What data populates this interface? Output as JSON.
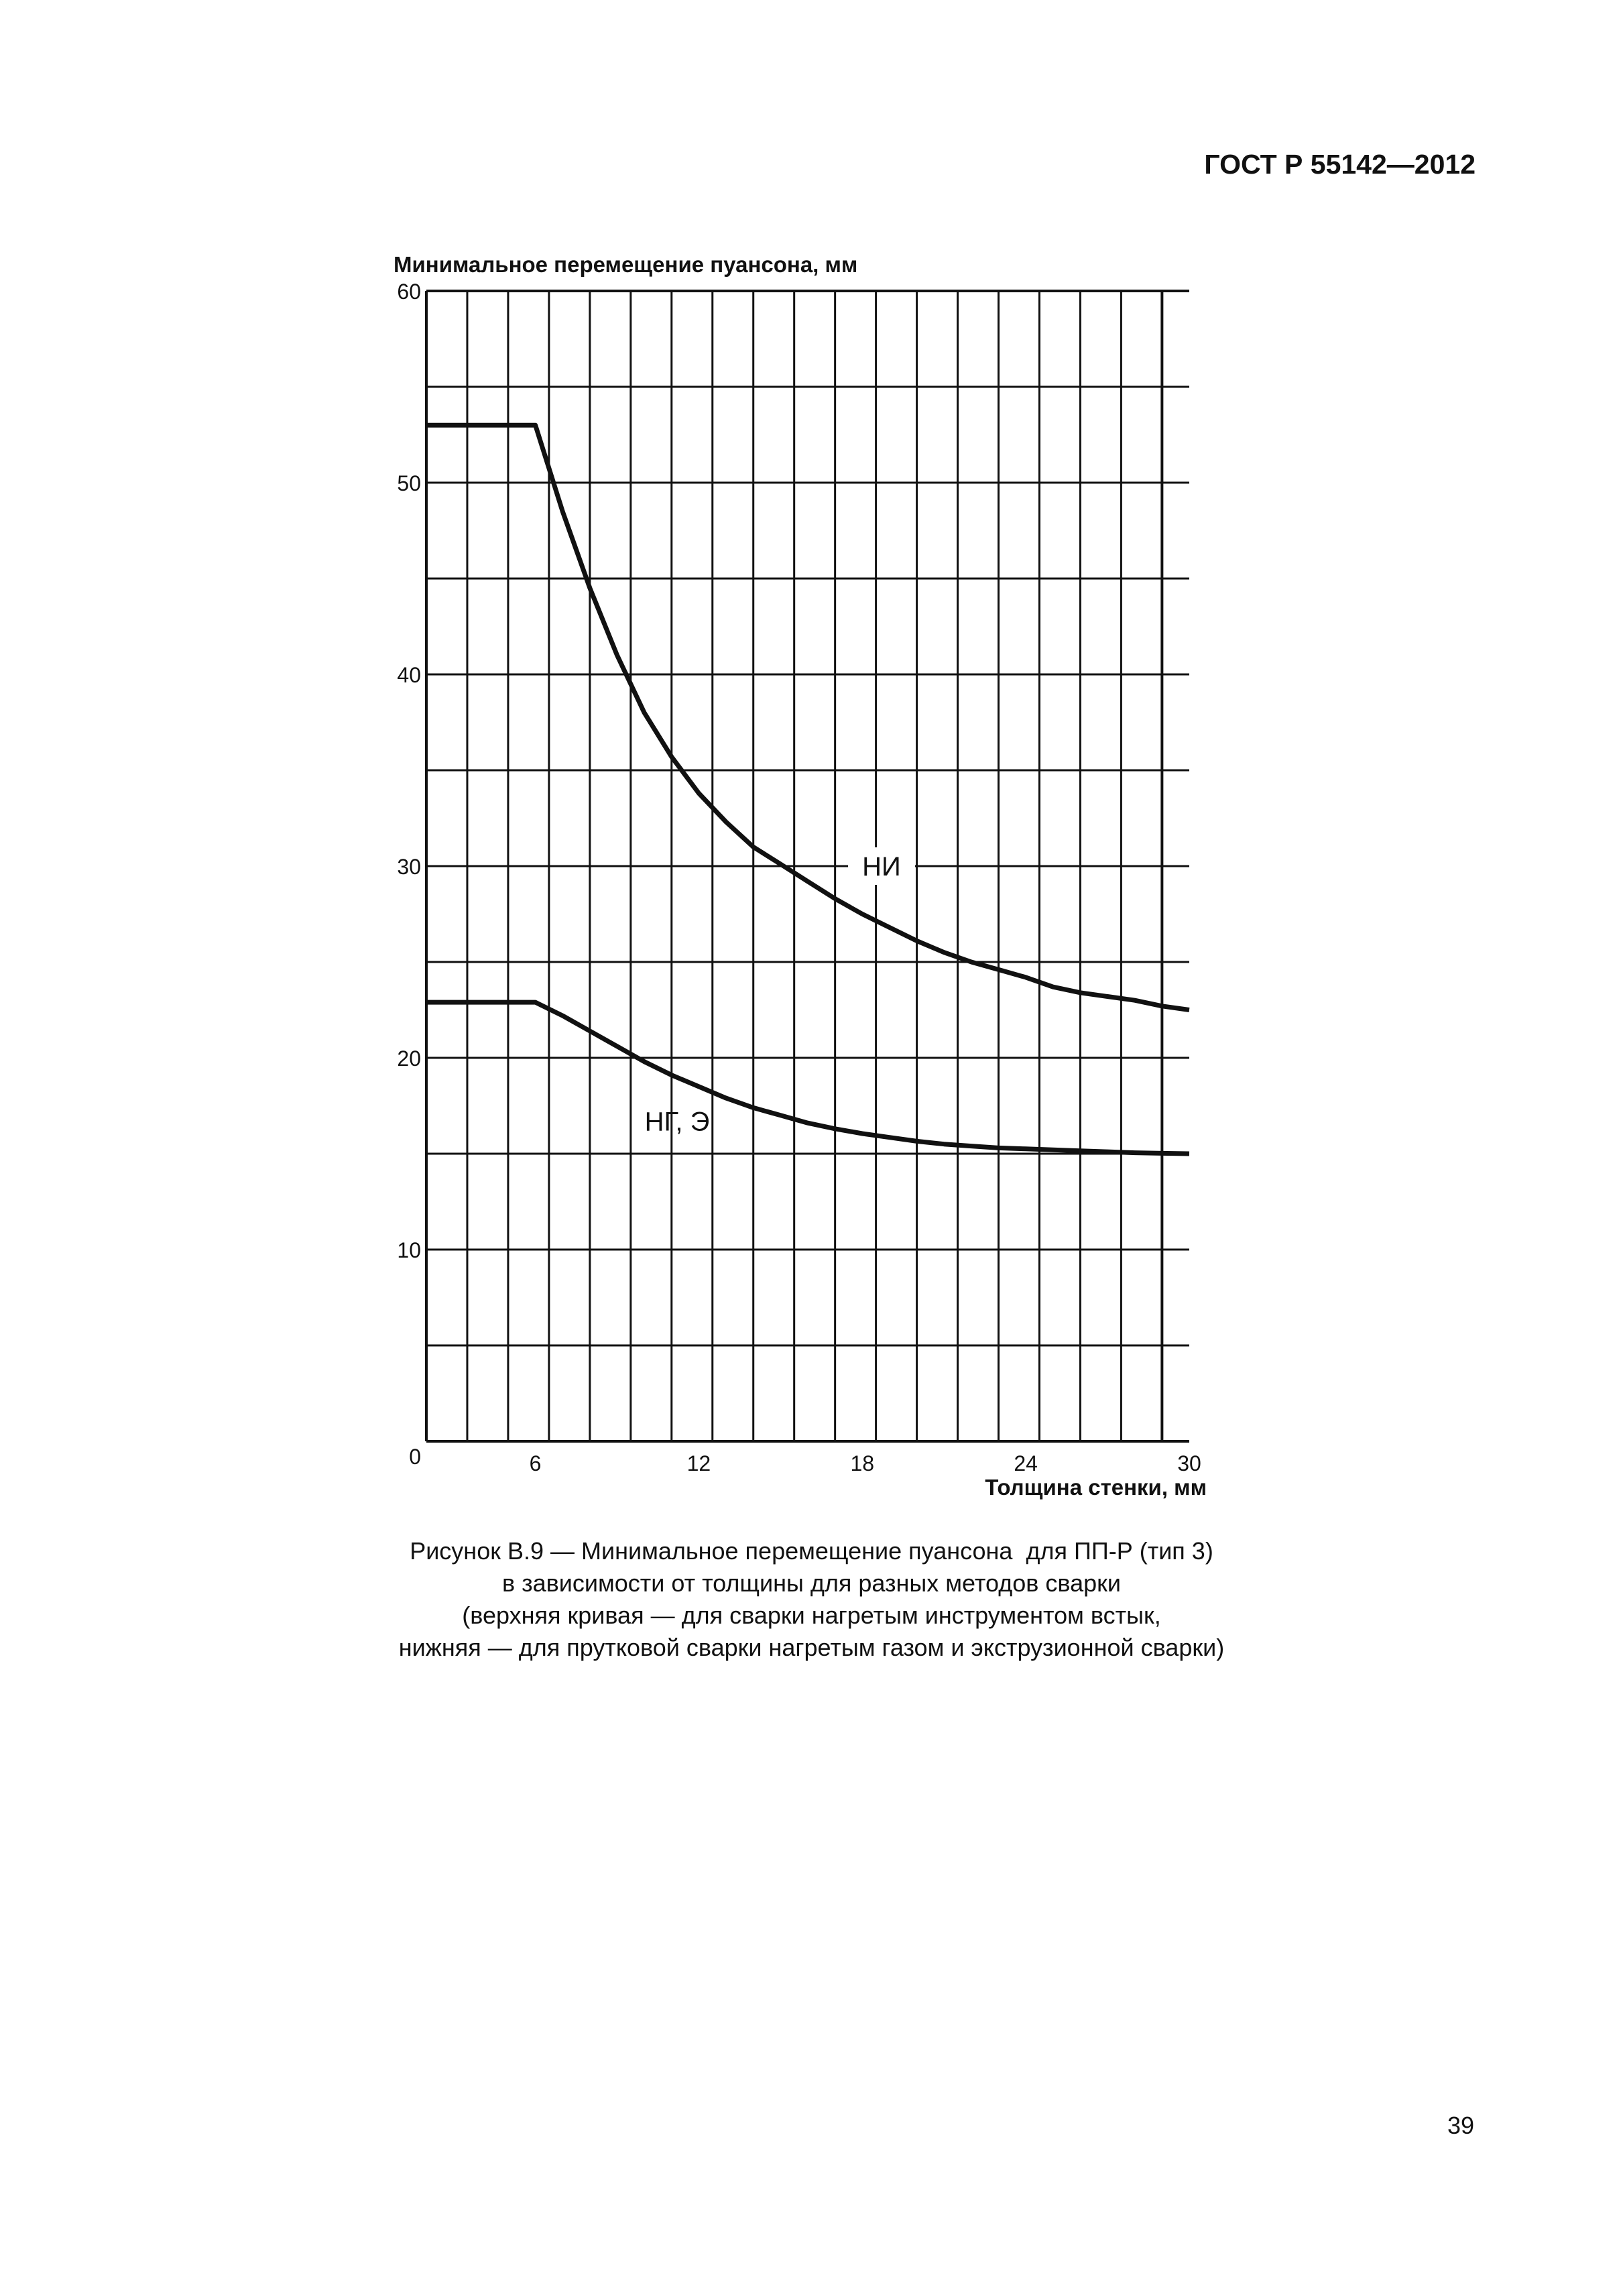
{
  "header": {
    "doc_id": "ГОСТ Р 55142—2012"
  },
  "chart_data": {
    "type": "line",
    "ylabel": "Минимальное перемещение пуансона, мм",
    "xlabel": "Толщина стенки, мм",
    "xlim": [
      0,
      30
    ],
    "ylim": [
      0,
      60
    ],
    "x_ticks": [
      6,
      12,
      18,
      24,
      30
    ],
    "y_ticks": [
      0,
      10,
      20,
      30,
      40,
      50,
      60
    ],
    "grid": true,
    "series": [
      {
        "name": "НИ",
        "points": [
          [
            2,
            53
          ],
          [
            6,
            53
          ],
          [
            7,
            48.5
          ],
          [
            8,
            44.5
          ],
          [
            9,
            41
          ],
          [
            10,
            38
          ],
          [
            11,
            35.7
          ],
          [
            12,
            33.8
          ],
          [
            13,
            32.3
          ],
          [
            14,
            31
          ],
          [
            15,
            30.1
          ],
          [
            16,
            29.2
          ],
          [
            17,
            28.3
          ],
          [
            18,
            27.5
          ],
          [
            19,
            26.8
          ],
          [
            20,
            26.1
          ],
          [
            21,
            25.5
          ],
          [
            22,
            25
          ],
          [
            23,
            24.6
          ],
          [
            24,
            24.2
          ],
          [
            25,
            23.7
          ],
          [
            26,
            23.4
          ],
          [
            27,
            23.2
          ],
          [
            28,
            23
          ],
          [
            29,
            22.7
          ],
          [
            30,
            22.5
          ]
        ]
      },
      {
        "name": "НГ, Э",
        "points": [
          [
            2,
            22.9
          ],
          [
            6,
            22.9
          ],
          [
            7,
            22.2
          ],
          [
            8,
            21.4
          ],
          [
            9,
            20.6
          ],
          [
            10,
            19.8
          ],
          [
            11,
            19.1
          ],
          [
            12,
            18.5
          ],
          [
            13,
            17.9
          ],
          [
            14,
            17.4
          ],
          [
            15,
            17
          ],
          [
            16,
            16.6
          ],
          [
            17,
            16.3
          ],
          [
            18,
            16.05
          ],
          [
            19,
            15.85
          ],
          [
            20,
            15.65
          ],
          [
            21,
            15.5
          ],
          [
            22,
            15.4
          ],
          [
            23,
            15.3
          ],
          [
            24,
            15.25
          ],
          [
            25,
            15.2
          ],
          [
            26,
            15.15
          ],
          [
            27,
            15.1
          ],
          [
            28,
            15.05
          ],
          [
            29,
            15.02
          ],
          [
            30,
            15
          ]
        ]
      }
    ],
    "annotations": [
      {
        "text": "НИ",
        "series": "НИ"
      },
      {
        "text": "НГ, Э",
        "series": "НГ, Э"
      }
    ]
  },
  "caption": {
    "lines": [
      "Рисунок В.9 — Минимальное перемещение пуансона  для ПП-Р (тип 3)",
      "в зависимости от толщины для разных методов сварки",
      "(верхняя кривая — для сварки нагретым инструментом встык,",
      "нижняя — для прутковой сварки нагретым газом и экструзионной сварки)"
    ]
  },
  "page_number": "39"
}
